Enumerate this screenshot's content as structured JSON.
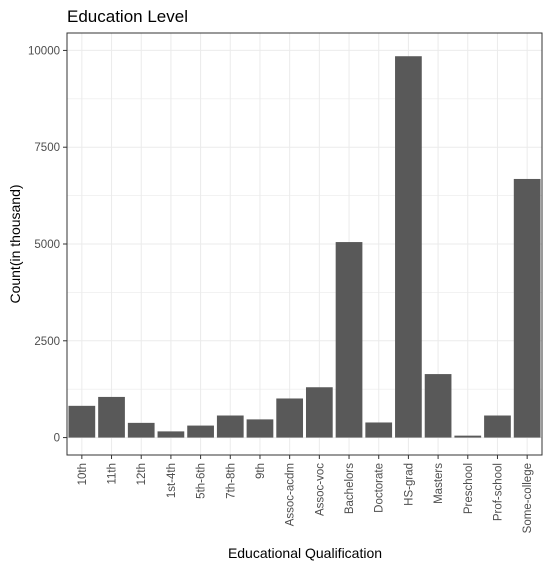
{
  "chart_data": {
    "type": "bar",
    "title": "Education Level",
    "xlabel": "Educational Qualification",
    "ylabel": "Count(in thousand)",
    "categories": [
      "10th",
      "11th",
      "12th",
      "1st-4th",
      "5th-6th",
      "7th-8th",
      "9th",
      "Assoc-acdm",
      "Assoc-voc",
      "Bachelors",
      "Doctorate",
      "HS-grad",
      "Masters",
      "Preschool",
      "Prof-school",
      "Some-college"
    ],
    "values": [
      820,
      1050,
      380,
      160,
      310,
      570,
      470,
      1010,
      1300,
      5050,
      390,
      9850,
      1640,
      50,
      570,
      6680
    ],
    "ylim": [
      -450,
      10450
    ],
    "yticks": [
      0,
      2500,
      5000,
      7500,
      10000
    ],
    "ytick_labels": [
      "0",
      "2500",
      "5000",
      "7500",
      "10000"
    ],
    "grid": true,
    "bar_color": "#595959",
    "grid_color": "#ebebeb",
    "panel_border_color": "#333333"
  }
}
